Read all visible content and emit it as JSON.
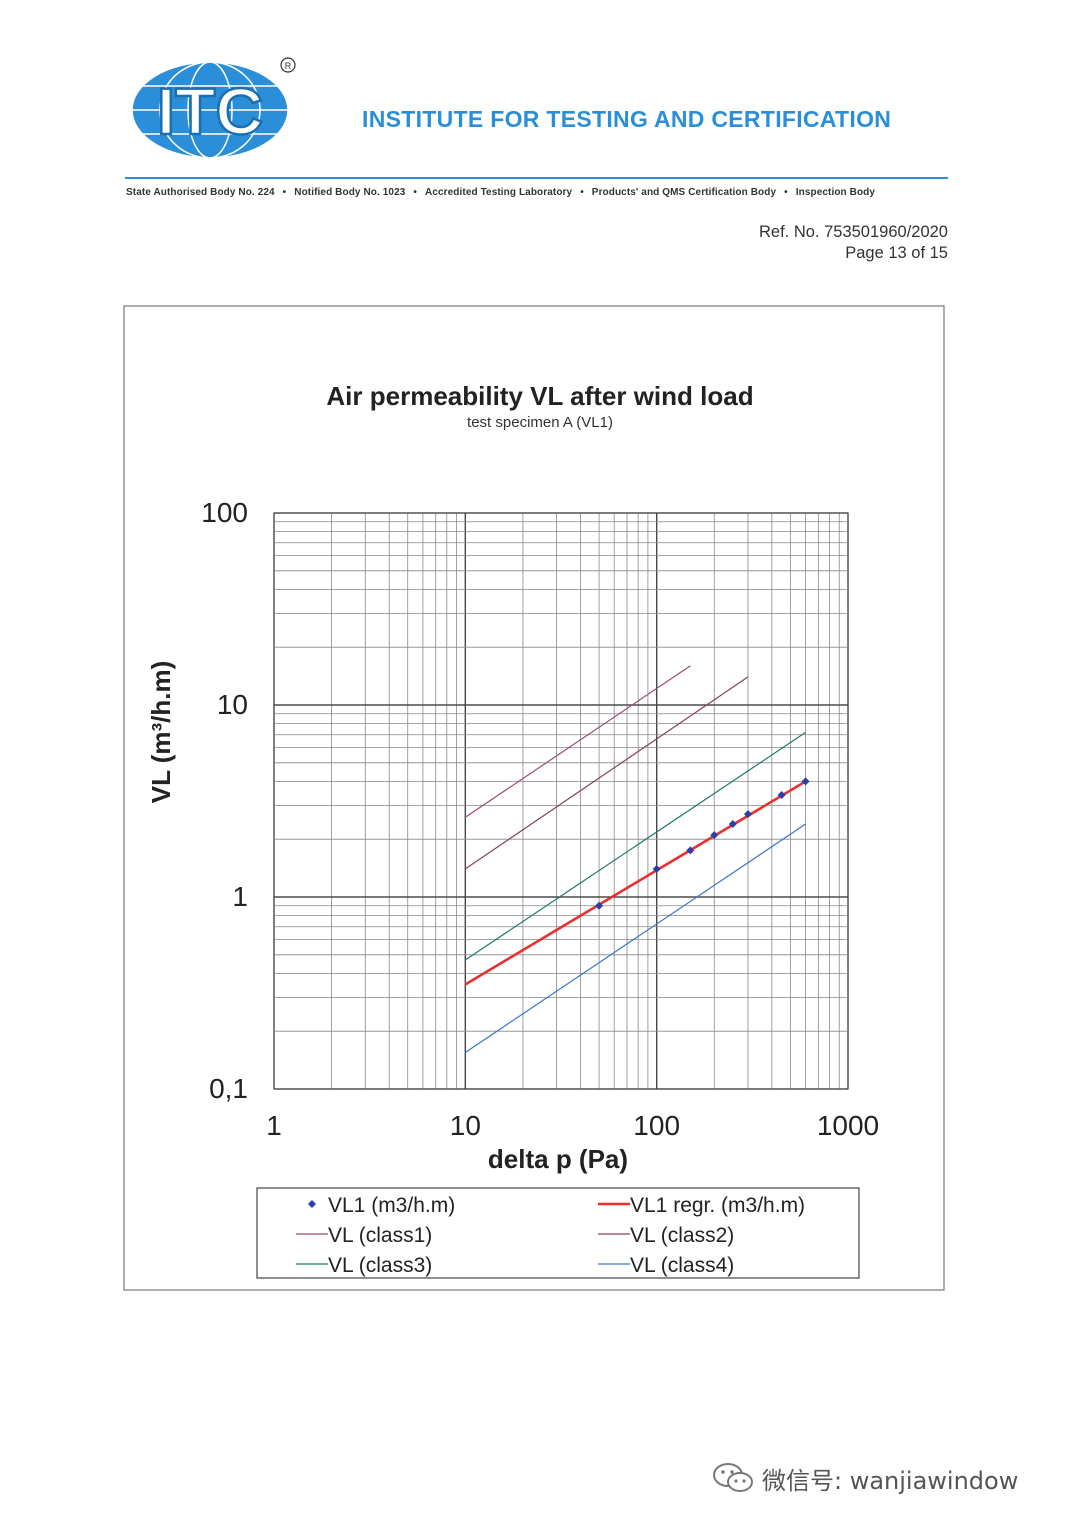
{
  "header": {
    "logo_text": "ITC",
    "institute_name": "INSTITUTE FOR TESTING AND CERTIFICATION",
    "accreditations": [
      "State Authorised Body  No. 224",
      "Notified Body  No. 1023",
      "Accredited Testing Laboratory",
      "Products'  and  QMS Certification Body",
      "Inspection Body"
    ],
    "separator": "•",
    "ref_no": "Ref. No. 753501960/2020",
    "page": "Page 13 of 15",
    "brand_color": "#2a8fd8"
  },
  "chart_data": {
    "type": "line",
    "title": "Air permeability VL after wind load",
    "subtitle": "test specimen A (VL1)",
    "xlabel": "delta p (Pa)",
    "ylabel": "VL (m³/h.m)",
    "x_scale": "log",
    "y_scale": "log",
    "xlim": [
      1,
      1000
    ],
    "ylim": [
      0.1,
      100
    ],
    "x_ticks": [
      "1",
      "10",
      "100",
      "1000"
    ],
    "y_ticks": [
      "0,1",
      "1",
      "10",
      "100"
    ],
    "grid": true,
    "legend_position": "bottom",
    "series": [
      {
        "name": "VL1 (m3/h.m)",
        "kind": "points",
        "color": "#2b3fa8",
        "points": [
          [
            50,
            0.9
          ],
          [
            100,
            1.4
          ],
          [
            150,
            1.75
          ],
          [
            200,
            2.1
          ],
          [
            250,
            2.4
          ],
          [
            300,
            2.7
          ],
          [
            450,
            3.4
          ],
          [
            600,
            4.0
          ]
        ]
      },
      {
        "name": "VL1 regr. (m3/h.m)",
        "kind": "line",
        "color": "#e8302f",
        "width": 2.6,
        "points": [
          [
            10,
            0.35
          ],
          [
            600,
            4.0
          ]
        ]
      },
      {
        "name": "VL (class1)",
        "kind": "line",
        "color": "#9a4a7a",
        "width": 1.2,
        "points": [
          [
            10,
            2.6
          ],
          [
            150,
            16
          ]
        ]
      },
      {
        "name": "VL (class2)",
        "kind": "line",
        "color": "#8a4060",
        "width": 1.2,
        "points": [
          [
            10,
            1.4
          ],
          [
            300,
            14
          ]
        ]
      },
      {
        "name": "VL (class3)",
        "kind": "line",
        "color": "#1a7a6a",
        "width": 1.2,
        "points": [
          [
            10,
            0.47
          ],
          [
            600,
            7.2
          ]
        ]
      },
      {
        "name": "VL (class4)",
        "kind": "line",
        "color": "#3a78c8",
        "width": 1.2,
        "points": [
          [
            10,
            0.155
          ],
          [
            600,
            2.4
          ]
        ]
      }
    ]
  },
  "watermark": {
    "text": "微信号: wanjiawindow"
  }
}
